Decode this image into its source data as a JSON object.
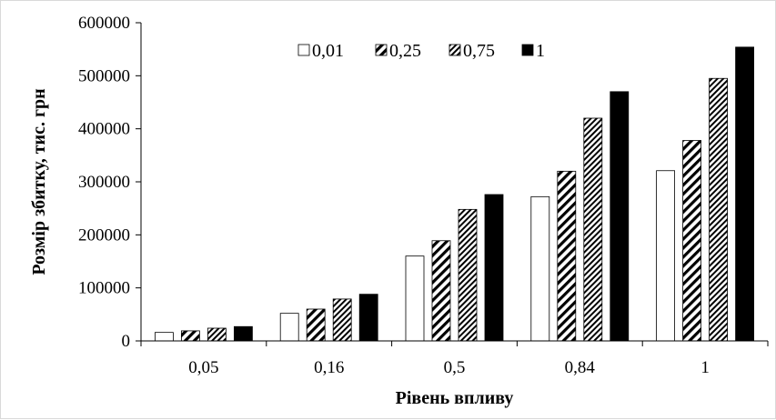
{
  "chart_data": {
    "type": "bar",
    "categories": [
      "0,05",
      "0,16",
      "0,5",
      "0,84",
      "1"
    ],
    "series": [
      {
        "name": "0,01",
        "values": [
          16000,
          52000,
          160000,
          272000,
          321000
        ]
      },
      {
        "name": "0,25",
        "values": [
          19000,
          60000,
          189000,
          320000,
          378000
        ]
      },
      {
        "name": "0,75",
        "values": [
          24000,
          79000,
          248000,
          420000,
          495000
        ]
      },
      {
        "name": "1",
        "values": [
          27000,
          88000,
          276000,
          470000,
          554000
        ]
      }
    ],
    "series_styles": [
      {
        "fill": "white",
        "stroke": "#000000"
      },
      {
        "fill": "diagonal-wide",
        "stroke": "#000000"
      },
      {
        "fill": "diagonal-dense",
        "stroke": "#000000"
      },
      {
        "fill": "solid",
        "stroke": "#000000"
      }
    ],
    "xlabel": "Рівень впливу",
    "ylabel": "Розмір збитку, тис. грн",
    "ylim": [
      0,
      600000
    ],
    "yticks": [
      "0",
      "100000",
      "200000",
      "300000",
      "400000",
      "500000",
      "600000"
    ],
    "legend_position": "top-center",
    "grid": false
  }
}
